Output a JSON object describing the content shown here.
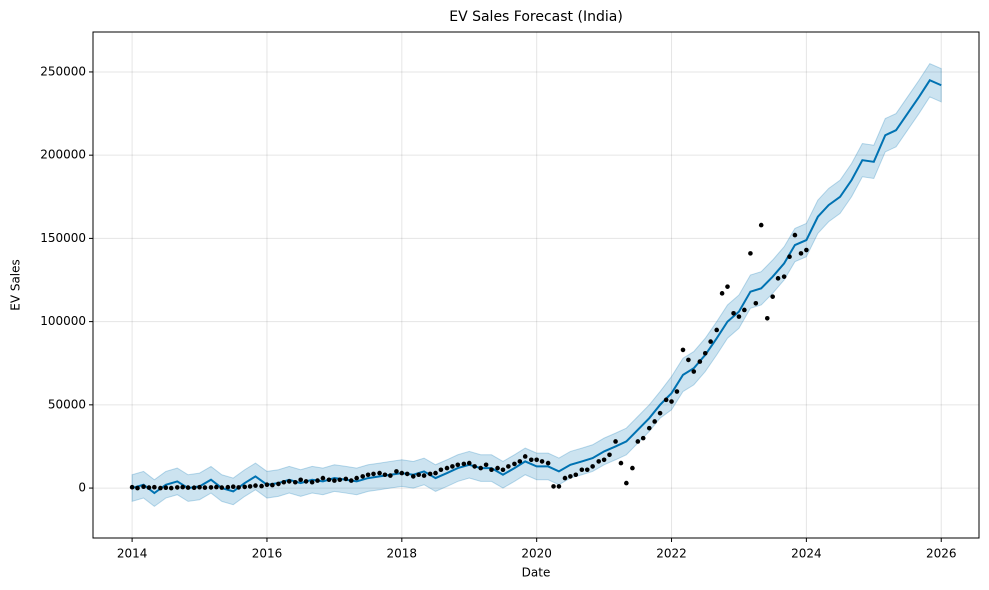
{
  "chart_data": {
    "type": "forecast",
    "title": "EV Sales Forecast (India)",
    "x_label": "Date",
    "y_label": "EV Sales",
    "xlim": [
      2013.42,
      2026.56
    ],
    "xticks": [
      2014,
      2016,
      2018,
      2020,
      2022,
      2024,
      2026
    ],
    "ylim": [
      -30000,
      274000
    ],
    "yticks": [
      0,
      50000,
      100000,
      150000,
      200000,
      250000
    ],
    "grid": true,
    "series": [
      {
        "color": "#0072b2",
        "x": [
          2014,
          2014.17,
          2014.33,
          2014.5,
          2014.67,
          2014.83,
          2015,
          2015.17,
          2015.33,
          2015.5,
          2015.67,
          2015.83,
          2016,
          2016.17,
          2016.33,
          2016.5,
          2016.67,
          2016.83,
          2017,
          2017.17,
          2017.33,
          2017.5,
          2017.67,
          2017.83,
          2018,
          2018.17,
          2018.33,
          2018.5,
          2018.67,
          2018.83,
          2019,
          2019.17,
          2019.33,
          2019.5,
          2019.67,
          2019.83,
          2020,
          2020.17,
          2020.33,
          2020.5,
          2020.67,
          2020.83,
          2021,
          2021.17,
          2021.33,
          2021.5,
          2021.67,
          2021.83,
          2022,
          2022.17,
          2022.33,
          2022.5,
          2022.67,
          2022.83,
          2023,
          2023.17,
          2023.33,
          2023.5,
          2023.67,
          2023.83,
          2024,
          2024.17,
          2024.33,
          2024.5,
          2024.67,
          2024.83,
          2025,
          2025.17,
          2025.33,
          2025.5,
          2025.67,
          2025.83,
          2026
        ],
        "values": [
          0,
          2000,
          -3000,
          2000,
          4000,
          0,
          1000,
          5000,
          0,
          -2000,
          3000,
          7000,
          2000,
          3000,
          5000,
          3000,
          5000,
          4000,
          6000,
          5000,
          4000,
          6000,
          7000,
          8000,
          9000,
          8000,
          10000,
          6000,
          9000,
          12000,
          14000,
          12000,
          12000,
          8000,
          12000,
          16000,
          13000,
          13000,
          10000,
          14000,
          16000,
          18000,
          22000,
          25000,
          28000,
          35000,
          42000,
          50000,
          57000,
          68000,
          72000,
          80000,
          90000,
          100000,
          106000,
          118000,
          120000,
          127000,
          135000,
          146000,
          149000,
          163000,
          170000,
          175000,
          185000,
          197000,
          196000,
          212000,
          215000,
          225000,
          235000,
          245000,
          242000
        ],
        "lower": [
          -8000,
          -6000,
          -11000,
          -6000,
          -4000,
          -8000,
          -7000,
          -3000,
          -8000,
          -10000,
          -5000,
          -1000,
          -6000,
          -5000,
          -3000,
          -5000,
          -3000,
          -4000,
          -2000,
          -3000,
          -4000,
          -2000,
          -1000,
          0,
          1000,
          0,
          2000,
          -2000,
          1000,
          4000,
          6000,
          4000,
          4000,
          0,
          4000,
          8000,
          5000,
          5000,
          2000,
          6000,
          8000,
          10000,
          14000,
          17000,
          20000,
          27000,
          34000,
          42000,
          47000,
          58000,
          62000,
          70000,
          80000,
          90000,
          96000,
          108000,
          110000,
          117000,
          125000,
          136000,
          139000,
          153000,
          160000,
          165000,
          175000,
          187000,
          186000,
          202000,
          205000,
          215000,
          225000,
          235000,
          232000
        ],
        "upper": [
          8000,
          10000,
          5000,
          10000,
          12000,
          8000,
          9000,
          13000,
          8000,
          6000,
          11000,
          15000,
          10000,
          11000,
          13000,
          11000,
          13000,
          12000,
          14000,
          13000,
          12000,
          14000,
          15000,
          16000,
          17000,
          16000,
          18000,
          14000,
          17000,
          20000,
          22000,
          20000,
          20000,
          16000,
          20000,
          24000,
          21000,
          21000,
          18000,
          22000,
          24000,
          26000,
          30000,
          33000,
          36000,
          43000,
          50000,
          58000,
          67000,
          78000,
          82000,
          90000,
          100000,
          110000,
          116000,
          128000,
          130000,
          137000,
          145000,
          156000,
          159000,
          173000,
          180000,
          185000,
          195000,
          207000,
          206000,
          222000,
          225000,
          235000,
          245000,
          255000,
          252000
        ]
      },
      {
        "color": "#000000",
        "x": [
          2014,
          2014.08,
          2014.17,
          2014.25,
          2014.33,
          2014.42,
          2014.5,
          2014.58,
          2014.67,
          2014.75,
          2014.83,
          2014.92,
          2015,
          2015.08,
          2015.17,
          2015.25,
          2015.33,
          2015.42,
          2015.5,
          2015.58,
          2015.67,
          2015.75,
          2015.83,
          2015.92,
          2016,
          2016.08,
          2016.17,
          2016.25,
          2016.33,
          2016.42,
          2016.5,
          2016.58,
          2016.67,
          2016.75,
          2016.83,
          2016.92,
          2017,
          2017.08,
          2017.17,
          2017.25,
          2017.33,
          2017.42,
          2017.5,
          2017.58,
          2017.67,
          2017.75,
          2017.83,
          2017.92,
          2018,
          2018.08,
          2018.17,
          2018.25,
          2018.33,
          2018.42,
          2018.5,
          2018.58,
          2018.67,
          2018.75,
          2018.83,
          2018.92,
          2019,
          2019.08,
          2019.17,
          2019.25,
          2019.33,
          2019.42,
          2019.5,
          2019.58,
          2019.67,
          2019.75,
          2019.83,
          2019.92,
          2020,
          2020.08,
          2020.17,
          2020.25,
          2020.33,
          2020.42,
          2020.5,
          2020.58,
          2020.67,
          2020.75,
          2020.83,
          2020.92,
          2021,
          2021.08,
          2021.17,
          2021.25,
          2021.33,
          2021.42,
          2021.5,
          2021.58,
          2021.67,
          2021.75,
          2021.83,
          2021.92,
          2022,
          2022.08,
          2022.17,
          2022.25,
          2022.33,
          2022.42,
          2022.5,
          2022.58,
          2022.67,
          2022.75,
          2022.83,
          2022.92,
          2023,
          2023.08,
          2023.17,
          2023.25,
          2023.33,
          2023.42,
          2023.5,
          2023.58,
          2023.67,
          2023.75,
          2023.83,
          2023.92,
          2024
        ],
        "values": [
          500,
          0,
          800,
          300,
          500,
          0,
          200,
          0,
          400,
          600,
          300,
          200,
          500,
          300,
          400,
          600,
          300,
          500,
          800,
          400,
          700,
          1000,
          1500,
          1200,
          2000,
          1800,
          2500,
          3500,
          4000,
          3500,
          5000,
          4000,
          3500,
          4500,
          6000,
          5000,
          4500,
          5000,
          5500,
          4500,
          6000,
          7000,
          8000,
          8500,
          9000,
          8000,
          7500,
          10000,
          9000,
          8500,
          7000,
          8000,
          7500,
          8500,
          9000,
          11000,
          12000,
          13000,
          14000,
          14500,
          15000,
          13000,
          12000,
          14000,
          11000,
          12000,
          11000,
          13000,
          14500,
          16000,
          19000,
          17000,
          17000,
          16000,
          15000,
          1000,
          1000,
          6000,
          7000,
          8000,
          11000,
          11000,
          13000,
          16000,
          17000,
          20000,
          28000,
          15000,
          3000,
          12000,
          28000,
          30000,
          36000,
          40000,
          45000,
          53000,
          52000,
          58000,
          83000,
          77000,
          70000,
          76000,
          81000,
          88000,
          95000,
          117000,
          121000,
          105000,
          103000,
          107000,
          141000,
          111000,
          158000,
          102000,
          115000,
          126000,
          127000,
          139000,
          152000,
          141000,
          143000
        ]
      }
    ]
  }
}
